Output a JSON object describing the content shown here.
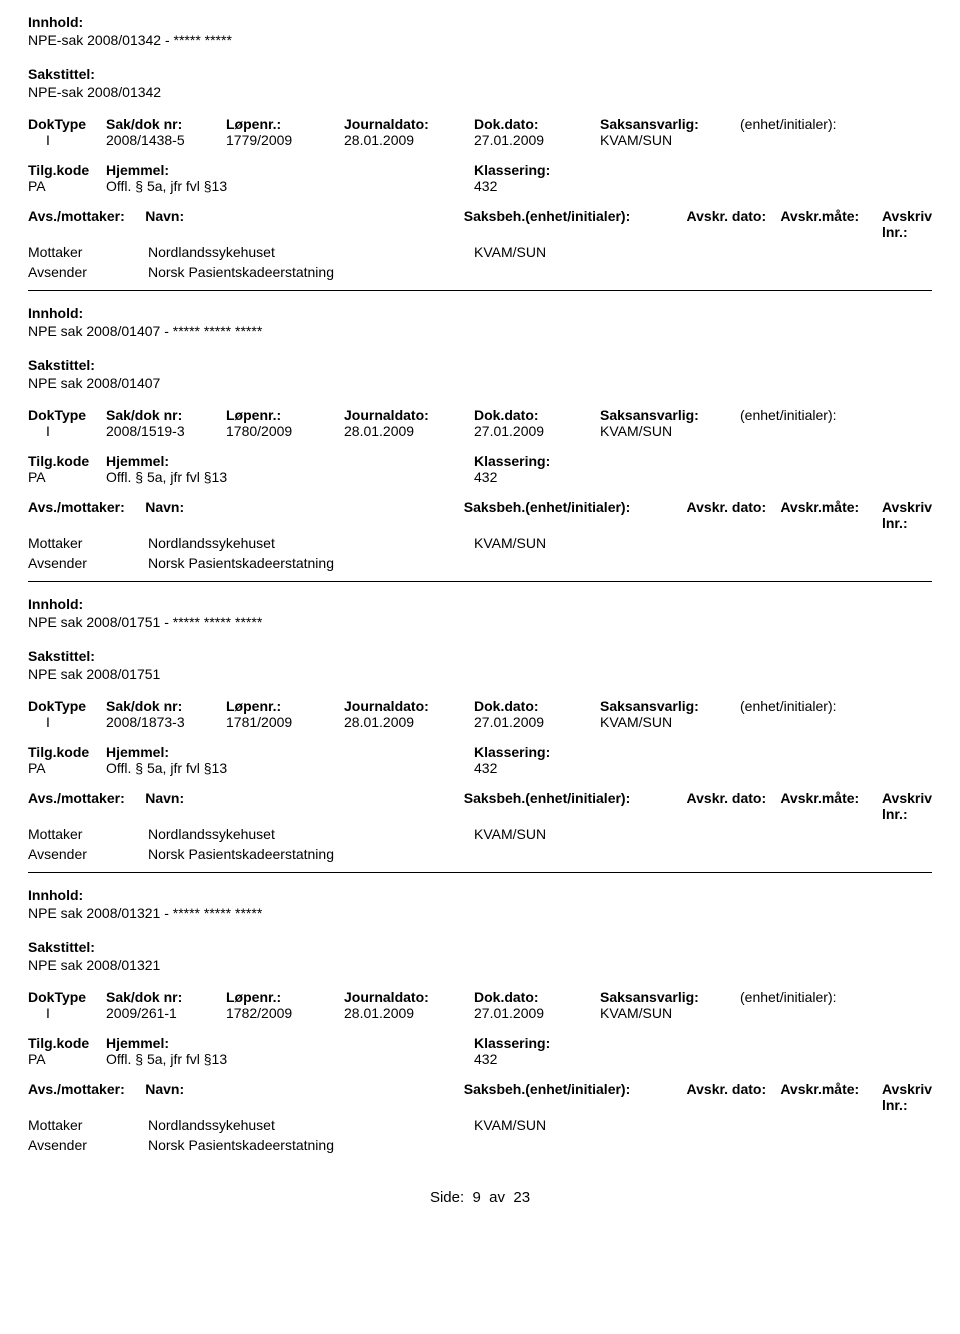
{
  "labels": {
    "innhold": "Innhold:",
    "sakstittel": "Sakstittel:",
    "doktype": "DokType",
    "sakdoknr": "Sak/dok nr:",
    "lopenr": "Løpenr.:",
    "journaldato": "Journaldato:",
    "dokdato": "Dok.dato:",
    "saksansvarlig": "Saksansvarlig:",
    "enhet": "(enhet/initialer):",
    "tilgkode": "Tilg.kode",
    "hjemmel": "Hjemmel:",
    "klassering": "Klassering:",
    "avsmottaker": "Avs./mottaker:",
    "navn": "Navn:",
    "saksbeh": "Saksbeh.(enhet/initialer):",
    "avskrdato": "Avskr. dato:",
    "avskrmate": "Avskr.måte:",
    "avskrivlnr": "Avskriv lnr.:"
  },
  "pager": {
    "prefix": "Side:",
    "current": "9",
    "sep": "av",
    "total": "23"
  },
  "records": [
    {
      "innhold": "NPE-sak 2008/01342 - ***** *****",
      "sakstittel": "NPE-sak 2008/01342",
      "doktype": "I",
      "sakdoknr": "2008/1438-5",
      "lopenr": "1779/2009",
      "journaldato": "28.01.2009",
      "dokdato": "27.01.2009",
      "saksansvarlig": "KVAM/SUN",
      "enhet": "",
      "tilgkode": "PA",
      "hjemmel": "Offl. § 5a, jfr fvl §13",
      "klassering": "432",
      "parties": [
        {
          "role": "Mottaker",
          "navn": "Nordlandssykehuset",
          "saksbeh": "KVAM/SUN"
        },
        {
          "role": "Avsender",
          "navn": "Norsk Pasientskadeerstatning",
          "saksbeh": ""
        }
      ]
    },
    {
      "innhold": "NPE sak 2008/01407 - ***** ***** *****",
      "sakstittel": "NPE sak 2008/01407",
      "doktype": "I",
      "sakdoknr": "2008/1519-3",
      "lopenr": "1780/2009",
      "journaldato": "28.01.2009",
      "dokdato": "27.01.2009",
      "saksansvarlig": "KVAM/SUN",
      "enhet": "",
      "tilgkode": "PA",
      "hjemmel": "Offl. § 5a, jfr fvl §13",
      "klassering": "432",
      "parties": [
        {
          "role": "Mottaker",
          "navn": "Nordlandssykehuset",
          "saksbeh": "KVAM/SUN"
        },
        {
          "role": "Avsender",
          "navn": "Norsk Pasientskadeerstatning",
          "saksbeh": ""
        }
      ]
    },
    {
      "innhold": "NPE sak 2008/01751 - ***** ***** *****",
      "sakstittel": "NPE sak 2008/01751",
      "doktype": "I",
      "sakdoknr": "2008/1873-3",
      "lopenr": "1781/2009",
      "journaldato": "28.01.2009",
      "dokdato": "27.01.2009",
      "saksansvarlig": "KVAM/SUN",
      "enhet": "",
      "tilgkode": "PA",
      "hjemmel": "Offl. § 5a, jfr fvl §13",
      "klassering": "432",
      "parties": [
        {
          "role": "Mottaker",
          "navn": "Nordlandssykehuset",
          "saksbeh": "KVAM/SUN"
        },
        {
          "role": "Avsender",
          "navn": "Norsk Pasientskadeerstatning",
          "saksbeh": ""
        }
      ]
    },
    {
      "innhold": "NPE sak 2008/01321 - ***** ***** *****",
      "sakstittel": "NPE sak 2008/01321",
      "doktype": "I",
      "sakdoknr": "2009/261-1",
      "lopenr": "1782/2009",
      "journaldato": "28.01.2009",
      "dokdato": "27.01.2009",
      "saksansvarlig": "KVAM/SUN",
      "enhet": "",
      "tilgkode": "PA",
      "hjemmel": "Offl. § 5a, jfr fvl §13",
      "klassering": "432",
      "parties": [
        {
          "role": "Mottaker",
          "navn": "Nordlandssykehuset",
          "saksbeh": "KVAM/SUN"
        },
        {
          "role": "Avsender",
          "navn": "Norsk Pasientskadeerstatning",
          "saksbeh": ""
        }
      ]
    }
  ]
}
